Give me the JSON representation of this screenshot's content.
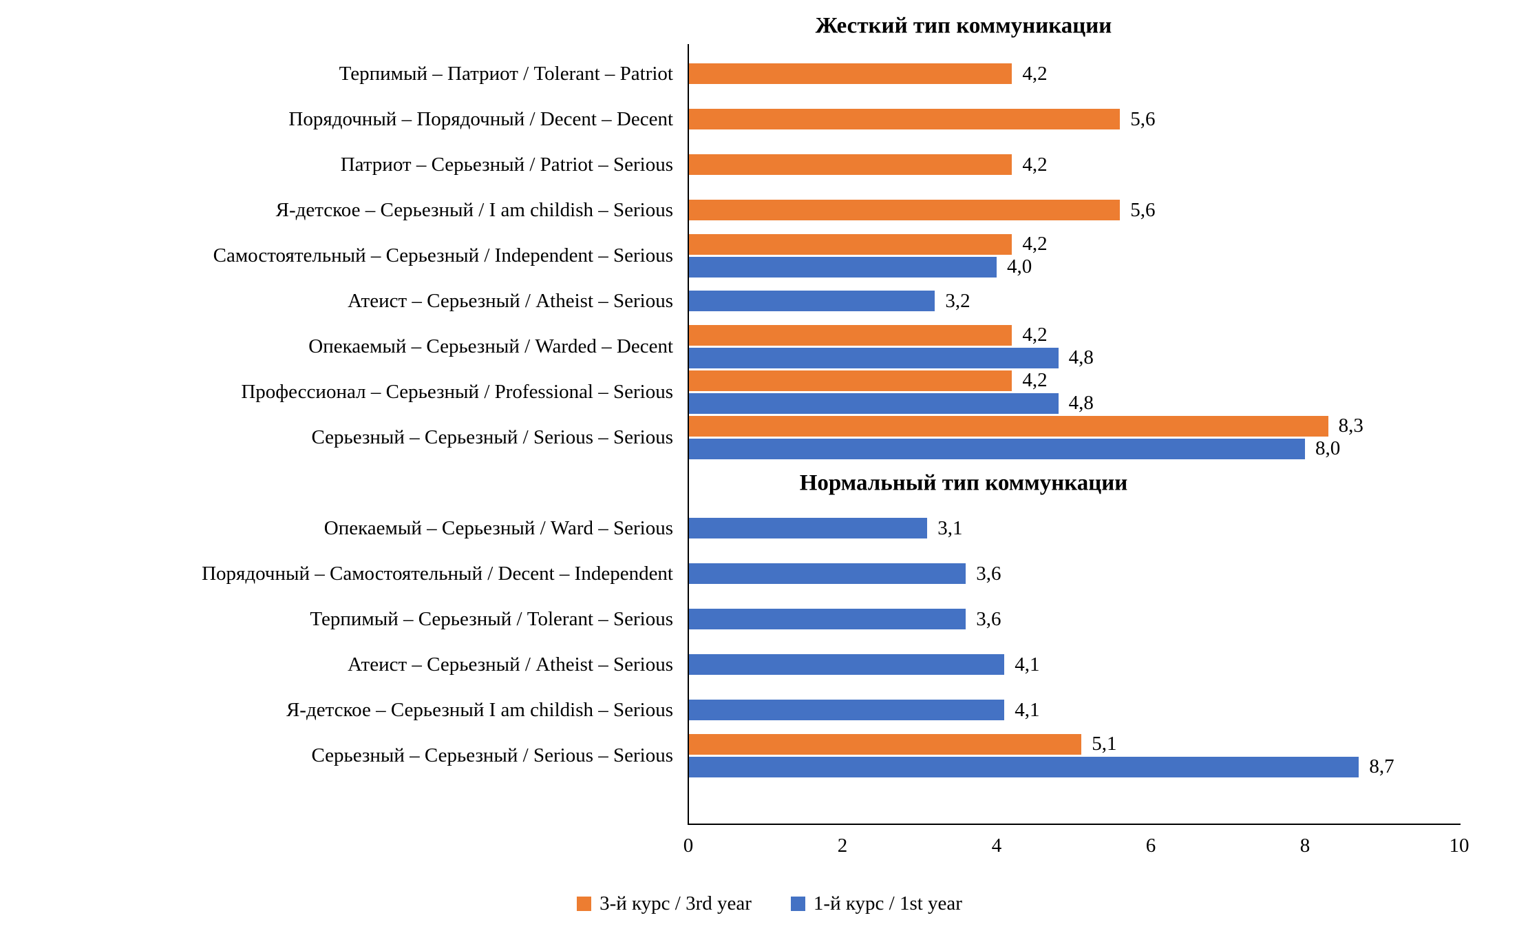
{
  "chart_data": {
    "type": "bar",
    "orientation": "horizontal",
    "xlim": [
      0,
      10
    ],
    "x_ticks": [
      "0",
      "2",
      "4",
      "6",
      "8",
      "10"
    ],
    "grid": false,
    "legend_position": "bottom-center",
    "series_colors": {
      "year3": "#ED7D31",
      "year1": "#4472C4"
    },
    "legend": [
      {
        "series": "year3",
        "label": "3-й курс / 3rd year",
        "color": "#ED7D31"
      },
      {
        "series": "year1",
        "label": "1-й курс / 1st year",
        "color": "#4472C4"
      }
    ],
    "sections": [
      {
        "title": "Жесткий тип коммуникации",
        "rows": [
          {
            "label": "Терпимый – Патриот / Tolerant – Patriot",
            "values": [
              {
                "series": "year3",
                "value": 4.2,
                "label": "4,2"
              }
            ]
          },
          {
            "label": "Порядочный – Порядочный / Decent – Decent",
            "values": [
              {
                "series": "year3",
                "value": 5.6,
                "label": "5,6"
              }
            ]
          },
          {
            "label": "Патриот – Серьезный / Patriot – Serious",
            "values": [
              {
                "series": "year3",
                "value": 4.2,
                "label": "4,2"
              }
            ]
          },
          {
            "label": "Я-детское – Серьезный / I am childish – Serious",
            "values": [
              {
                "series": "year3",
                "value": 5.6,
                "label": "5,6"
              }
            ]
          },
          {
            "label": "Самостоятельный – Серьезный / Independent – Serious",
            "values": [
              {
                "series": "year3",
                "value": 4.2,
                "label": "4,2"
              },
              {
                "series": "year1",
                "value": 4.0,
                "label": "4,0"
              }
            ]
          },
          {
            "label": "Атеист – Серьезный / Atheist – Serious",
            "values": [
              {
                "series": "year1",
                "value": 3.2,
                "label": "3,2"
              }
            ]
          },
          {
            "label": "Опекаемый – Серьезный / Warded – Decent",
            "values": [
              {
                "series": "year3",
                "value": 4.2,
                "label": "4,2"
              },
              {
                "series": "year1",
                "value": 4.8,
                "label": "4,8"
              }
            ]
          },
          {
            "label": "Профессионал – Серьезный / Professional – Serious",
            "values": [
              {
                "series": "year3",
                "value": 4.2,
                "label": "4,2"
              },
              {
                "series": "year1",
                "value": 4.8,
                "label": "4,8"
              }
            ]
          },
          {
            "label": "Серьезный – Серьезный / Serious – Serious",
            "values": [
              {
                "series": "year3",
                "value": 8.3,
                "label": "8,3"
              },
              {
                "series": "year1",
                "value": 8.0,
                "label": "8,0"
              }
            ]
          }
        ]
      },
      {
        "title": "Нормальный тип коммункации",
        "rows": [
          {
            "label": "Опекаемый – Серьезный / Ward – Serious",
            "values": [
              {
                "series": "year1",
                "value": 3.1,
                "label": "3,1"
              }
            ]
          },
          {
            "label": "Порядочный – Самостоятельный / Decent – Independent",
            "values": [
              {
                "series": "year1",
                "value": 3.6,
                "label": "3,6"
              }
            ]
          },
          {
            "label": "Терпимый – Серьезный / Tolerant – Serious",
            "values": [
              {
                "series": "year1",
                "value": 3.6,
                "label": "3,6"
              }
            ]
          },
          {
            "label": "Атеист – Серьезный / Atheist – Serious",
            "values": [
              {
                "series": "year1",
                "value": 4.1,
                "label": "4,1"
              }
            ]
          },
          {
            "label": "Я-детское – Серьезный  I am childish – Serious",
            "values": [
              {
                "series": "year1",
                "value": 4.1,
                "label": "4,1"
              }
            ]
          },
          {
            "label": "Серьезный – Серьезный / Serious – Serious",
            "values": [
              {
                "series": "year3",
                "value": 5.1,
                "label": "5,1"
              },
              {
                "series": "year1",
                "value": 8.7,
                "label": "8,7"
              }
            ]
          }
        ]
      }
    ]
  }
}
